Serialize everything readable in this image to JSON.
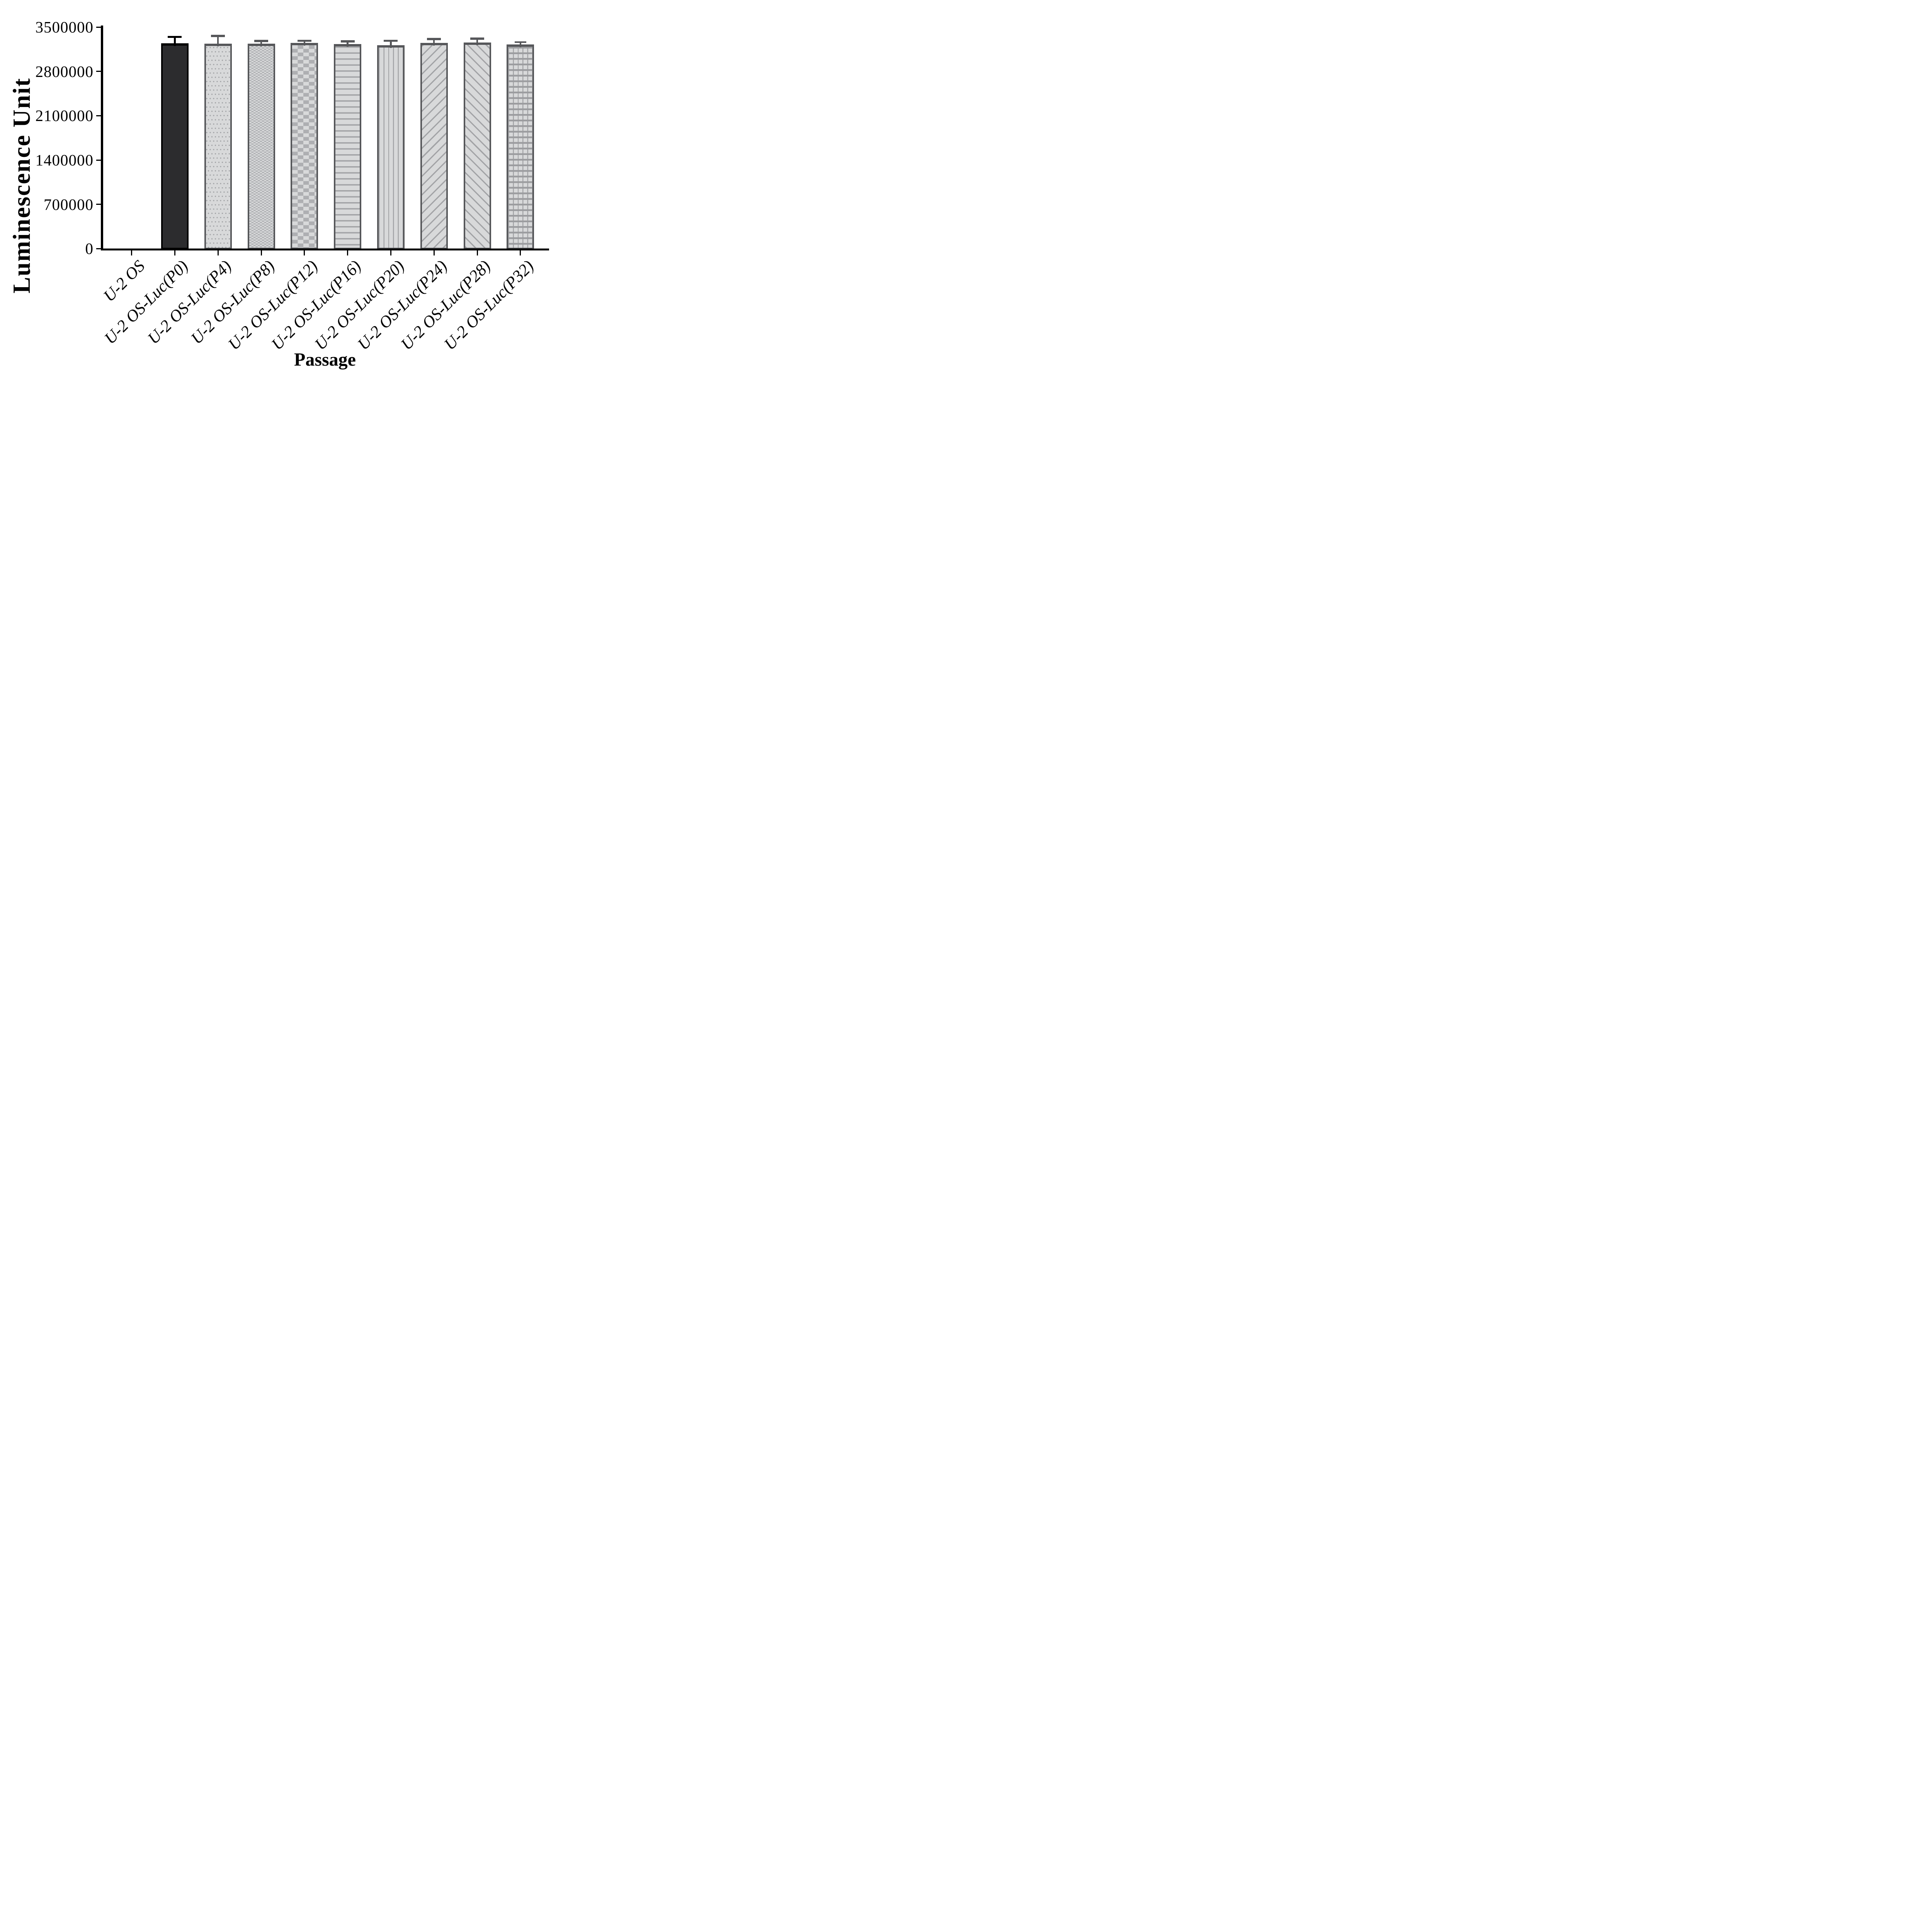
{
  "chart_data": {
    "type": "bar",
    "title": "",
    "xlabel": "Passage",
    "ylabel": "Luminescence Unit",
    "ylim": [
      0,
      3500000
    ],
    "yticks": [
      0,
      700000,
      1400000,
      2100000,
      2800000,
      3500000
    ],
    "grid": false,
    "legend": "none",
    "error_bars": "sd, upper only, capped",
    "categories": [
      "U-2 OS",
      "U-2 OS-Luc(P0)",
      "U-2 OS-Luc(P4)",
      "U-2 OS-Luc(P8)",
      "U-2 OS-Luc(P12)",
      "U-2 OS-Luc(P16)",
      "U-2 OS-Luc(P20)",
      "U-2 OS-Luc(P24)",
      "U-2 OS-Luc(P28)",
      "U-2 OS-Luc(P32)"
    ],
    "values": [
      0,
      3245000,
      3240000,
      3237000,
      3253000,
      3235000,
      3215000,
      3249000,
      3258000,
      3224000
    ],
    "errors": [
      0,
      118000,
      137000,
      61000,
      49000,
      56000,
      86000,
      80000,
      76000,
      54000
    ],
    "patterns": [
      "none",
      "solid-dark",
      "dots",
      "checker-fine",
      "checker",
      "hlines",
      "vlines",
      "diag-forward",
      "diag-back",
      "grid"
    ]
  },
  "colors": {
    "bar_border_gray": "#56575a",
    "bar_fill_light": "#d8d9da",
    "pattern_gray": "#a2a3a6",
    "first_bar_fill": "#2c2c2e",
    "first_bar_border": "#000000",
    "axis": "#000000",
    "text": "#000000"
  }
}
